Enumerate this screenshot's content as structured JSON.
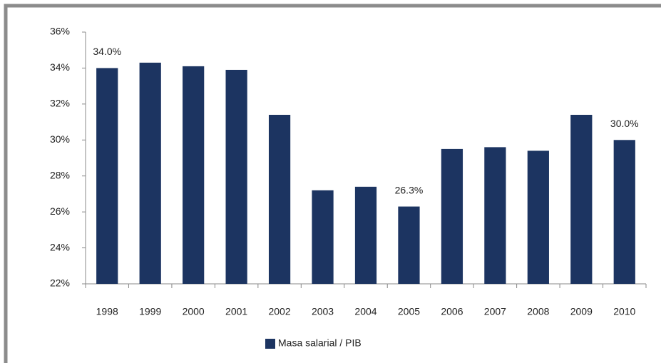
{
  "chart_data": {
    "type": "bar",
    "categories": [
      "1998",
      "1999",
      "2000",
      "2001",
      "2002",
      "2003",
      "2004",
      "2005",
      "2006",
      "2007",
      "2008",
      "2009",
      "2010"
    ],
    "series": [
      {
        "name": "Masa salarial / PIB",
        "color": "#1c3461",
        "values": [
          34.0,
          34.3,
          34.1,
          33.9,
          31.4,
          27.2,
          27.4,
          26.3,
          29.5,
          29.6,
          29.4,
          31.4,
          30.0
        ],
        "value_labels": [
          "34.0%",
          null,
          null,
          null,
          null,
          null,
          null,
          "26.3%",
          null,
          null,
          null,
          null,
          "30.0%"
        ]
      }
    ],
    "ylim": [
      22,
      36
    ],
    "yticks": [
      {
        "value": 22,
        "label": "22%"
      },
      {
        "value": 24,
        "label": "24%"
      },
      {
        "value": 26,
        "label": "26%"
      },
      {
        "value": 28,
        "label": "28%"
      },
      {
        "value": 30,
        "label": "30%"
      },
      {
        "value": 32,
        "label": "32%"
      },
      {
        "value": 34,
        "label": "34%"
      },
      {
        "value": 36,
        "label": "36%"
      }
    ],
    "grid": false,
    "legend": "bottom"
  }
}
